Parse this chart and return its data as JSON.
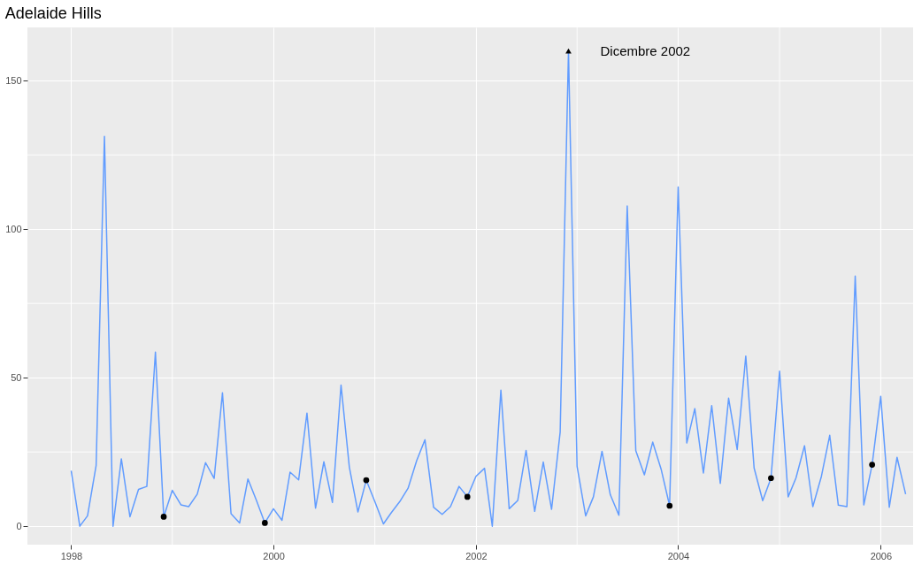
{
  "chart_data": {
    "type": "line",
    "title": "Adelaide Hills",
    "xlim": [
      "1997-07-27",
      "2006-04-28"
    ],
    "xticks": [
      {
        "value": "1998",
        "label": "1998"
      },
      {
        "value": "1999",
        "label": null
      },
      {
        "value": "2000",
        "label": "2000"
      },
      {
        "value": "2001",
        "label": null
      },
      {
        "value": "2002",
        "label": "2002"
      },
      {
        "value": "2003",
        "label": null
      },
      {
        "value": "2004",
        "label": "2004"
      },
      {
        "value": "2005",
        "label": null
      },
      {
        "value": "2006",
        "label": "2006"
      }
    ],
    "ylim": [
      -6.2,
      167.9
    ],
    "yticks": [
      0,
      {
        "value": 25,
        "label": null
      },
      50,
      {
        "value": 75,
        "label": null
      },
      100,
      {
        "value": 125,
        "label": null
      },
      150
    ],
    "grid": true,
    "line_style": "solid",
    "series": [
      {
        "type": "line",
        "color": "#619cff",
        "marker": "none",
        "x": [
          "1998-01",
          "1998-02",
          "1998-03",
          "1998-04",
          "1998-05",
          "1998-06",
          "1998-07",
          "1998-08",
          "1998-09",
          "1998-10",
          "1998-11",
          "1998-12",
          "1999-01",
          "1999-02",
          "1999-03",
          "1999-04",
          "1999-05",
          "1999-06",
          "1999-07",
          "1999-08",
          "1999-09",
          "1999-10",
          "1999-11",
          "1999-12",
          "2000-01",
          "2000-02",
          "2000-03",
          "2000-04",
          "2000-05",
          "2000-06",
          "2000-07",
          "2000-08",
          "2000-09",
          "2000-10",
          "2000-11",
          "2000-12",
          "2001-01",
          "2001-02",
          "2001-03",
          "2001-04",
          "2001-05",
          "2001-06",
          "2001-07",
          "2001-08",
          "2001-09",
          "2001-10",
          "2001-11",
          "2001-12",
          "2002-01",
          "2002-02",
          "2002-03",
          "2002-04",
          "2002-05",
          "2002-06",
          "2002-07",
          "2002-08",
          "2002-09",
          "2002-10",
          "2002-11",
          "2002-12",
          "2003-01",
          "2003-02",
          "2003-03",
          "2003-04",
          "2003-05",
          "2003-06",
          "2003-07",
          "2003-08",
          "2003-09",
          "2003-10",
          "2003-11",
          "2003-12",
          "2004-01",
          "2004-02",
          "2004-03",
          "2004-04",
          "2004-05",
          "2004-06",
          "2004-07",
          "2004-08",
          "2004-09",
          "2004-10",
          "2004-11",
          "2004-12",
          "2005-01",
          "2005-02",
          "2005-03",
          "2005-04",
          "2005-05",
          "2005-06",
          "2005-07",
          "2005-08",
          "2005-09",
          "2005-10",
          "2005-11",
          "2005-12",
          "2006-01",
          "2006-02",
          "2006-03",
          "2006-04"
        ],
        "values": [
          18.7,
          0,
          3.5,
          20.5,
          131.2,
          0,
          22.7,
          3.2,
          12.4,
          13.4,
          58.6,
          3.2,
          12.1,
          7.2,
          6.6,
          10.8,
          21.4,
          16.1,
          44.9,
          4.2,
          1.1,
          15.9,
          8.6,
          1.1,
          5.9,
          2.0,
          18.2,
          15.6,
          38.1,
          6.1,
          21.7,
          8.0,
          47.5,
          19.9,
          4.8,
          15.5,
          8.3,
          0.8,
          4.5,
          8.3,
          12.8,
          22.1,
          29.1,
          6.4,
          4.0,
          6.6,
          13.4,
          9.9,
          16.8,
          19.5,
          0,
          45.8,
          5.9,
          8.7,
          25.5,
          5.0,
          21.6,
          5.7,
          31.7,
          160,
          20.2,
          3.5,
          9.9,
          25.2,
          10.6,
          3.7,
          107.8,
          25.4,
          17.3,
          28.3,
          19.0,
          6.9,
          114.2,
          28.0,
          39.6,
          17.9,
          40.6,
          14.4,
          43.1,
          25.8,
          57.3,
          19.6,
          8.6,
          16.2,
          52.2,
          9.9,
          16.2,
          27.1,
          6.6,
          16.8,
          30.6,
          7.1,
          6.6,
          84.2,
          7.2,
          20.7,
          43.7,
          6.4,
          23.2,
          10.8
        ]
      },
      {
        "type": "scatter",
        "color": "#000000",
        "marker": "circle",
        "x": [
          "1998-12",
          "1999-12",
          "2000-12",
          "2001-12",
          "2003-12",
          "2004-12",
          "2005-12"
        ],
        "values": [
          3.2,
          1.1,
          15.5,
          9.9,
          6.9,
          16.2,
          20.7
        ]
      },
      {
        "type": "scatter",
        "color": "#000000",
        "marker": "triangle",
        "x": [
          "2002-12"
        ],
        "values": [
          160
        ]
      }
    ],
    "annotations": [
      {
        "text": "Dicembre 2002",
        "x": "2002-12",
        "y": 160
      }
    ]
  }
}
